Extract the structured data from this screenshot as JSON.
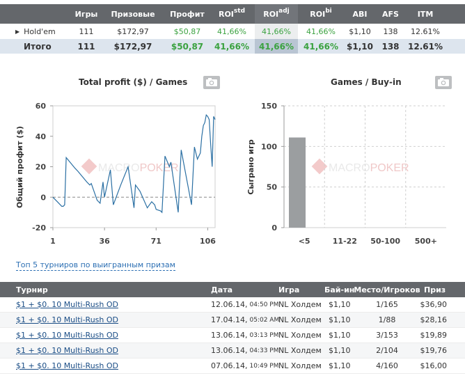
{
  "summary": {
    "headers": {
      "games": "Игры",
      "prize": "Призовые",
      "profit": "Профит",
      "roi_std_base": "ROI",
      "roi_std_sup": "std",
      "roi_adj_base": "ROI",
      "roi_adj_sup": "adj",
      "roi_bi_base": "ROI",
      "roi_bi_sup": "bi",
      "abi": "ABI",
      "afs": "AFS",
      "itm": "ITM"
    },
    "rows": [
      {
        "name": "Hold'em",
        "games": "111",
        "prize": "$172,97",
        "profit": "$50,87",
        "roi_std": "41,66%",
        "roi_adj": "41,66%",
        "roi_bi": "41,66%",
        "abi": "$1,10",
        "afs": "138",
        "itm": "12.61%"
      }
    ],
    "total": {
      "name": "Итого",
      "games": "111",
      "prize": "$172,97",
      "profit": "$50,87",
      "roi_std": "41,66%",
      "roi_adj": "41,66%",
      "roi_bi": "41,66%",
      "abi": "$1,10",
      "afs": "138",
      "itm": "12.61%"
    }
  },
  "watermark": {
    "brand_a": "MACRO",
    "brand_b": "POKER"
  },
  "colors": {
    "line": "#2a6fa3",
    "bar": "#9b9ea0",
    "accent": "#3ba240",
    "header": "#64676b",
    "link": "#2c6fb3",
    "brand_red": "#e57373"
  },
  "chart_data": [
    {
      "type": "line",
      "title": "Total profit ($) / Games",
      "xlabel": "",
      "ylabel": "Общий профит ($)",
      "xlim": [
        1,
        111
      ],
      "ylim": [
        -20,
        60
      ],
      "xticks": [
        "1",
        "36",
        "71",
        "106"
      ],
      "yticks": [
        "60",
        "40",
        "20",
        "0",
        "-20"
      ],
      "x": [
        1,
        4,
        7,
        8,
        9,
        10,
        16,
        18,
        24,
        26,
        27,
        31,
        33,
        35,
        36,
        40,
        42,
        47,
        52,
        56,
        57,
        60,
        65,
        68,
        70,
        71,
        74,
        75,
        77,
        80,
        81,
        86,
        88,
        95,
        97,
        99,
        101,
        102,
        103,
        104,
        105,
        106,
        107,
        108,
        109,
        110,
        111
      ],
      "y": [
        0,
        -3,
        -6,
        -6,
        -5,
        26,
        19,
        17,
        10,
        8,
        9,
        -2,
        -4,
        10,
        0,
        18,
        -5,
        8,
        20,
        -7,
        8,
        4,
        -7,
        -3,
        -5,
        -8,
        -9,
        -10,
        27,
        20,
        23,
        -10,
        31,
        -5,
        33,
        25,
        29,
        40,
        47,
        49,
        54,
        53,
        51,
        35,
        20,
        53,
        51
      ]
    },
    {
      "type": "bar",
      "title": "Games / Buy-in",
      "xlabel": "",
      "ylabel": "Сыграно игр",
      "categories": [
        "<5",
        "11-22",
        "50-100",
        "500+"
      ],
      "values": [
        111,
        0,
        0,
        0
      ],
      "ylim": [
        0,
        150
      ],
      "yticks": [
        "150",
        "100",
        "50",
        "0"
      ]
    }
  ],
  "top5": {
    "link_label": "Топ 5 турниров по выигранным призам",
    "headers": {
      "name": "Турнир",
      "date": "Дата",
      "game": "Игра",
      "buyin": "Бай-ин",
      "place": "Место/Игроков",
      "prize": "Приз"
    },
    "rows": [
      {
        "name": "$1 + $0. 10 Multi-Rush OD",
        "date": "12.06.14,",
        "time": "04:50 PM",
        "game": "NL Холдем",
        "buyin": "$1,10",
        "place": "1/165",
        "prize": "$36,90"
      },
      {
        "name": "$1 + $0. 10 Multi-Rush OD",
        "date": "17.04.14,",
        "time": "05:02 AM",
        "game": "NL Холдем",
        "buyin": "$1,10",
        "place": "1/88",
        "prize": "$28,16"
      },
      {
        "name": "$1 + $0. 10 Multi-Rush OD",
        "date": "13.06.14,",
        "time": "03:13 PM",
        "game": "NL Холдем",
        "buyin": "$1,10",
        "place": "3/153",
        "prize": "$19,89"
      },
      {
        "name": "$1 + $0. 10 Multi-Rush OD",
        "date": "13.06.14,",
        "time": "04:33 PM",
        "game": "NL Холдем",
        "buyin": "$1,10",
        "place": "2/104",
        "prize": "$19,76"
      },
      {
        "name": "$1 + $0. 10 Multi-Rush OD",
        "date": "07.06.14,",
        "time": "10:49 PM",
        "game": "NL Холдем",
        "buyin": "$1,10",
        "place": "4/160",
        "prize": "$16,00"
      }
    ]
  }
}
